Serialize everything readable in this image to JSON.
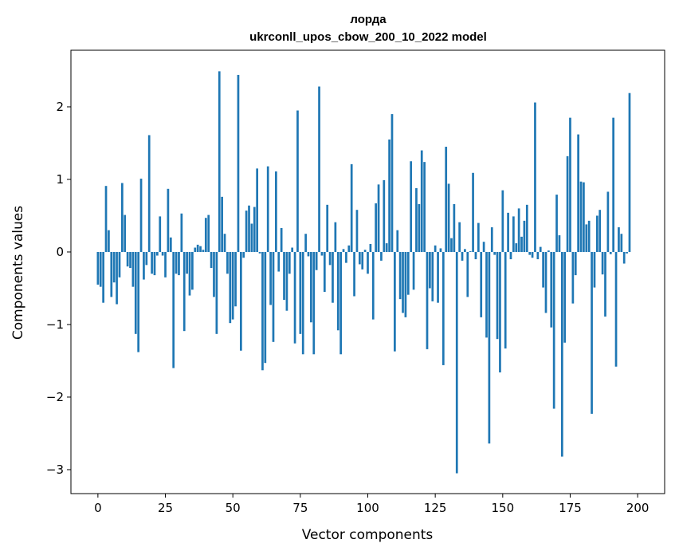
{
  "chart_data": {
    "type": "bar",
    "title": "лорда",
    "subtitle": "ukrconll_upos_cbow_200_10_2022 model",
    "xlabel": "Vector components",
    "ylabel": "Components values",
    "xlim": [
      -10,
      210
    ],
    "ylim": [
      -3.33,
      2.78
    ],
    "xticks": [
      0,
      25,
      50,
      75,
      100,
      125,
      150,
      175,
      200
    ],
    "yticks": [
      -3,
      -2,
      -1,
      0,
      1,
      2
    ],
    "ytick_labels": [
      "−3",
      "−2",
      "−1",
      "0",
      "1",
      "2"
    ],
    "grid": false,
    "bar_color": "#1f77b4",
    "values": [
      -0.45,
      -0.48,
      -0.7,
      0.91,
      0.3,
      -0.62,
      -0.42,
      -0.72,
      -0.35,
      0.95,
      0.51,
      -0.2,
      -0.22,
      -0.48,
      -1.13,
      -1.38,
      1.01,
      -0.38,
      -0.18,
      1.61,
      -0.3,
      -0.32,
      -0.05,
      0.49,
      -0.05,
      -0.35,
      0.87,
      0.2,
      -1.6,
      -0.3,
      -0.32,
      0.53,
      -1.09,
      -0.3,
      -0.6,
      -0.52,
      0.06,
      0.1,
      0.08,
      0.03,
      0.47,
      0.51,
      -0.22,
      -0.62,
      -1.13,
      2.49,
      0.76,
      0.25,
      -0.3,
      -0.98,
      -0.93,
      -0.75,
      2.44,
      -1.36,
      -0.08,
      0.57,
      0.64,
      0.39,
      0.62,
      1.15,
      -0.02,
      -1.63,
      -1.53,
      1.18,
      -0.73,
      -1.24,
      1.11,
      -0.27,
      0.33,
      -0.66,
      -0.81,
      -0.3,
      0.06,
      -1.26,
      1.95,
      -1.13,
      -1.41,
      0.25,
      -0.06,
      -0.97,
      -1.41,
      -0.25,
      2.28,
      -0.05,
      -0.55,
      0.65,
      -0.18,
      -0.7,
      0.41,
      -1.08,
      -1.41,
      0.04,
      -0.15,
      0.09,
      1.21,
      -0.61,
      0.58,
      -0.17,
      -0.24,
      0.03,
      -0.3,
      0.11,
      -0.93,
      0.67,
      0.93,
      -0.12,
      0.99,
      0.12,
      1.55,
      1.9,
      -1.37,
      0.3,
      -0.65,
      -0.84,
      -0.9,
      -0.59,
      1.25,
      -0.52,
      0.88,
      0.66,
      1.4,
      1.24,
      -1.34,
      -0.5,
      -0.68,
      0.09,
      -0.7,
      0.05,
      -1.56,
      1.45,
      0.94,
      0.19,
      0.66,
      -3.05,
      0.41,
      -0.12,
      0.04,
      -0.62,
      0.01,
      1.09,
      -0.1,
      0.4,
      -0.9,
      0.14,
      -1.18,
      -2.64,
      0.34,
      -0.04,
      -1.2,
      -1.66,
      0.85,
      -1.33,
      0.54,
      -0.1,
      0.49,
      0.12,
      0.6,
      0.21,
      0.43,
      0.65,
      -0.04,
      -0.08,
      2.06,
      -0.1,
      0.07,
      -0.49,
      -0.84,
      0.02,
      -1.04,
      -2.16,
      0.79,
      0.23,
      -2.82,
      -1.25,
      1.32,
      1.85,
      -0.71,
      -0.32,
      1.62,
      0.97,
      0.96,
      0.38,
      0.43,
      -2.23,
      -0.49,
      0.5,
      0.58,
      -0.31,
      -0.89,
      0.83,
      -0.03,
      1.85,
      -1.58,
      0.34,
      0.25,
      -0.16,
      -0.02,
      2.19,
      0.0,
      0.0
    ]
  }
}
